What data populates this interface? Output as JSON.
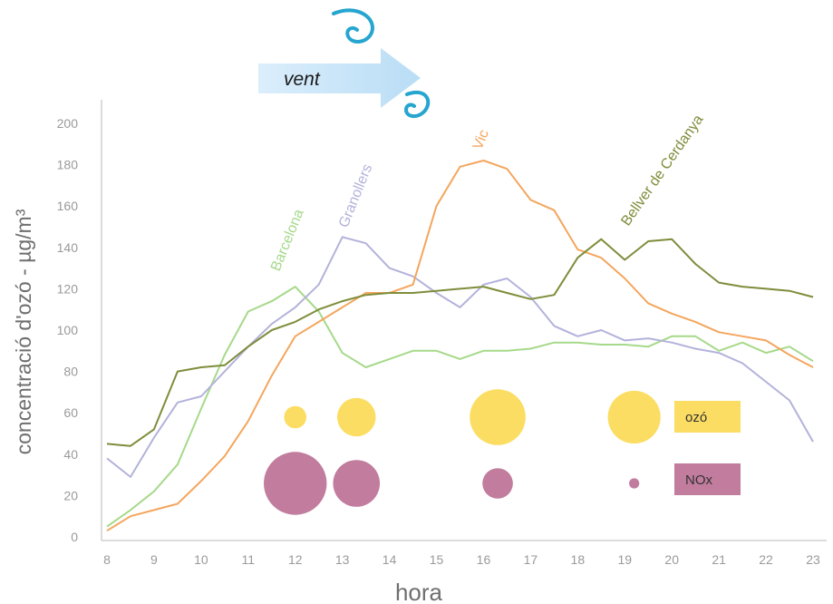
{
  "chart_data": {
    "type": "line",
    "xlabel": "hora",
    "ylabel": "concentració d'ozó - µg/m³",
    "xlim": [
      8,
      23
    ],
    "ylim": [
      0,
      200
    ],
    "x_ticks": [
      8,
      9,
      10,
      11,
      12,
      13,
      14,
      15,
      16,
      17,
      18,
      19,
      20,
      21,
      22,
      23
    ],
    "y_ticks": [
      0,
      20,
      40,
      60,
      80,
      100,
      120,
      140,
      160,
      180,
      200
    ],
    "grid": false,
    "annotation": {
      "text": "vent",
      "icon": "wind-arrow-icon"
    },
    "series": [
      {
        "name": "Barcelona",
        "color": "#a6d98a",
        "x": [
          8,
          8.5,
          9,
          9.5,
          10,
          10.5,
          11,
          11.5,
          12,
          12.5,
          13,
          13.5,
          14,
          14.5,
          15,
          15.5,
          16,
          16.5,
          17,
          17.5,
          18,
          18.5,
          19,
          19.5,
          20,
          20.5,
          21,
          21.5,
          22,
          22.5,
          23
        ],
        "y": [
          5,
          13,
          22,
          35,
          62,
          88,
          109,
          114,
          121,
          109,
          89,
          82,
          86,
          90,
          90,
          86,
          90,
          90,
          91,
          94,
          94,
          93,
          93,
          92,
          97,
          97,
          90,
          94,
          89,
          92,
          85
        ]
      },
      {
        "name": "Granollers",
        "color": "#b3b2db",
        "x": [
          8,
          8.5,
          9,
          9.5,
          10,
          10.5,
          11,
          11.5,
          12,
          12.5,
          13,
          13.5,
          14,
          14.5,
          15,
          15.5,
          16,
          16.5,
          17,
          17.5,
          18,
          18.5,
          19,
          19.5,
          20,
          20.5,
          21,
          21.5,
          22,
          22.5,
          23
        ],
        "y": [
          38,
          29,
          48,
          65,
          68,
          80,
          92,
          103,
          111,
          122,
          145,
          142,
          130,
          126,
          118,
          111,
          122,
          125,
          116,
          102,
          97,
          100,
          95,
          96,
          94,
          91,
          89,
          84,
          75,
          66,
          46
        ]
      },
      {
        "name": "Vic",
        "color": "#f4a65e",
        "x": [
          8,
          8.5,
          9,
          9.5,
          10,
          10.5,
          11,
          11.5,
          12,
          12.5,
          13,
          13.5,
          14,
          14.5,
          15,
          15.5,
          16,
          16.5,
          17,
          17.5,
          18,
          18.5,
          19,
          19.5,
          20,
          20.5,
          21,
          21.5,
          22,
          22.5,
          23
        ],
        "y": [
          3,
          10,
          13,
          16,
          27,
          39,
          56,
          78,
          97,
          104,
          111,
          118,
          118,
          122,
          160,
          179,
          182,
          178,
          163,
          158,
          139,
          135,
          125,
          113,
          108,
          104,
          99,
          97,
          95,
          88,
          82
        ]
      },
      {
        "name": "Bellver de Cerdanya",
        "color": "#7e8d3b",
        "x": [
          8,
          8.5,
          9,
          9.5,
          10,
          10.5,
          11,
          11.5,
          12,
          12.5,
          13,
          13.5,
          14,
          14.5,
          15,
          15.5,
          16,
          16.5,
          17,
          17.5,
          18,
          18.5,
          19,
          19.5,
          20,
          20.5,
          21,
          21.5,
          22,
          22.5,
          23
        ],
        "y": [
          45,
          44,
          52,
          80,
          82,
          83,
          92,
          100,
          104,
          110,
          114,
          117,
          118,
          118,
          119,
          120,
          121,
          118,
          115,
          117,
          135,
          144,
          134,
          143,
          144,
          132,
          123,
          121,
          120,
          119,
          116
        ]
      }
    ],
    "bubbles": {
      "legend": [
        {
          "label": "ozó",
          "color": "#fcdd63"
        },
        {
          "label": "NOx",
          "color": "#c17c9e"
        }
      ],
      "positions": [
        12,
        13.3,
        16.3,
        19.2
      ],
      "ozo_size": [
        0.22,
        0.38,
        0.55,
        0.52
      ],
      "nox_size": [
        0.62,
        0.46,
        0.3,
        0.1
      ]
    }
  }
}
